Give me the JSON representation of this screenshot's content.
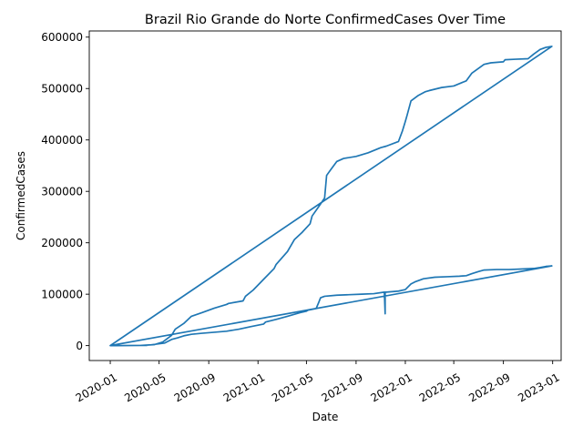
{
  "chart_data": {
    "type": "line",
    "title": "Brazil Rio Grande do Norte ConfirmedCases Over Time",
    "xlabel": "Date",
    "ylabel": "ConfirmedCases",
    "xlim": [
      "2019-11-10",
      "2023-01-22"
    ],
    "ylim": [
      -29000,
      612000
    ],
    "grid": false,
    "x_ticks": [
      "2020-01",
      "2020-05",
      "2020-09",
      "2021-01",
      "2021-05",
      "2021-09",
      "2022-01",
      "2022-05",
      "2022-09",
      "2023-01"
    ],
    "y_ticks": [
      0,
      100000,
      200000,
      300000,
      400000,
      500000,
      600000
    ],
    "y_tick_labels": [
      "0",
      "100000",
      "200000",
      "300000",
      "400000",
      "500000",
      "600000"
    ],
    "series": [
      {
        "color": "#1f77b4",
        "x": [
          "2020-01-01",
          "2020-03-15",
          "2020-04-20",
          "2020-05-10",
          "2020-06-01",
          "2020-06-10",
          "2020-07-01",
          "2020-07-20",
          "2020-08-15",
          "2020-09-15",
          "2020-10-15",
          "2020-10-20",
          "2020-11-25",
          "2020-12-01",
          "2020-12-20",
          "2021-01-15",
          "2021-02-10",
          "2021-02-15",
          "2021-03-15",
          "2021-04-01",
          "2021-04-20",
          "2021-05-10",
          "2021-05-15",
          "2021-06-01",
          "2021-06-15",
          "2021-06-20",
          "2021-07-01",
          "2021-07-15",
          "2021-08-01",
          "2021-09-01",
          "2021-10-01",
          "2021-11-01",
          "2021-11-15",
          "2021-12-15",
          "2021-12-25",
          "2022-01-01",
          "2022-01-05",
          "2022-01-15",
          "2022-02-01",
          "2022-02-20",
          "2022-03-01",
          "2022-04-01",
          "2022-05-01",
          "2022-06-01",
          "2022-06-15",
          "2022-07-15",
          "2022-08-01",
          "2022-09-01",
          "2022-09-05",
          "2022-10-01",
          "2022-11-01",
          "2022-11-15",
          "2022-12-01",
          "2022-12-15",
          "2022-12-30",
          "2020-01-01",
          "2020-04-01",
          "2020-05-15",
          "2020-06-01",
          "2020-06-15",
          "2020-07-01",
          "2020-07-20",
          "2020-08-15",
          "2020-09-15",
          "2020-10-15",
          "2020-11-15",
          "2020-12-15",
          "2021-01-15",
          "2021-01-20",
          "2021-02-15",
          "2021-03-15",
          "2021-04-15",
          "2021-05-01",
          "2021-05-05",
          "2021-05-25",
          "2021-06-01",
          "2021-06-05",
          "2021-06-15",
          "2021-07-15",
          "2021-08-15",
          "2021-09-15",
          "2021-10-15",
          "2021-11-10",
          "2021-11-12",
          "2021-11-12",
          "2021-11-12",
          "2021-11-15",
          "2021-12-15",
          "2022-01-01",
          "2022-01-15",
          "2022-01-25",
          "2022-02-15",
          "2022-03-15",
          "2022-04-15",
          "2022-05-15",
          "2022-06-01",
          "2022-06-15",
          "2022-07-01",
          "2022-07-15",
          "2022-08-15",
          "2022-09-15",
          "2022-10-15",
          "2022-11-15",
          "2022-12-01",
          "2022-12-15",
          "2022-12-30",
          "2020-01-01"
        ],
        "y": [
          0,
          200,
          2000,
          7000,
          20000,
          32000,
          43000,
          57000,
          64000,
          73000,
          80000,
          82000,
          87000,
          96000,
          108000,
          129000,
          150000,
          158000,
          183000,
          206000,
          220000,
          237000,
          252000,
          271000,
          287000,
          331000,
          343000,
          358000,
          364000,
          368000,
          375000,
          385000,
          388000,
          397000,
          418000,
          436000,
          447000,
          476000,
          486000,
          494000,
          496000,
          502000,
          505000,
          515000,
          530000,
          547000,
          550000,
          552000,
          556000,
          557000,
          558000,
          567000,
          576000,
          580000,
          582000,
          0,
          500,
          5000,
          12000,
          15000,
          19000,
          22000,
          24000,
          26000,
          28000,
          32000,
          37000,
          42000,
          46000,
          51000,
          57000,
          64000,
          67000,
          69000,
          72000,
          85000,
          93000,
          96000,
          98000,
          99000,
          100000,
          101000,
          104000,
          62000,
          104000,
          104000,
          104000,
          106000,
          109000,
          120000,
          124000,
          130000,
          133000,
          134000,
          135000,
          136000,
          140000,
          144000,
          147000,
          148000,
          148000,
          149000,
          150000,
          152000,
          154000,
          155000,
          0
        ]
      }
    ]
  }
}
